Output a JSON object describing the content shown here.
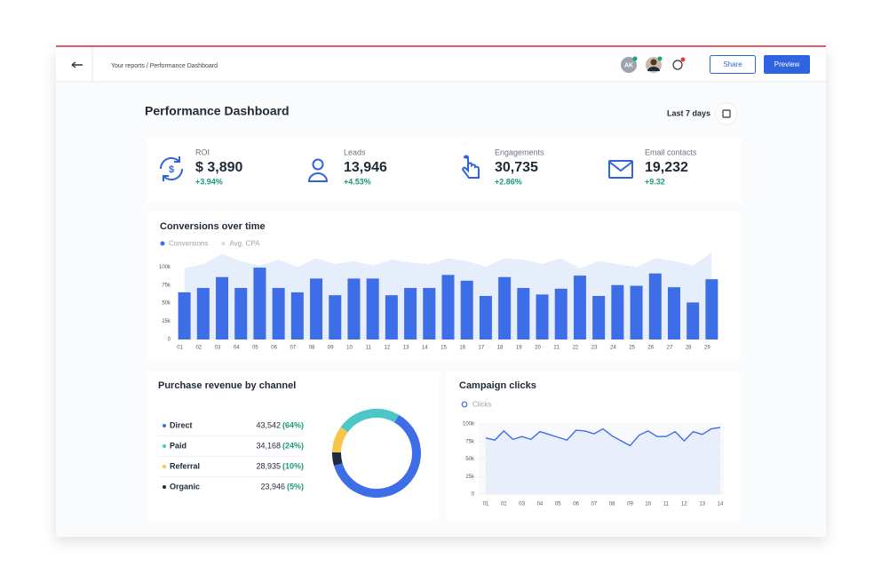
{
  "header": {
    "breadcrumb": "Your reports / Performance Dashboard",
    "avatar": "AK",
    "share": "Share",
    "preview": "Preview"
  },
  "title": "Performance Dashboard",
  "date_range": "Last 7 days",
  "kpis": [
    {
      "label": "ROI",
      "value": "$ 3,890",
      "change": "+3.94%"
    },
    {
      "label": "Leads",
      "value": "13,946",
      "change": "+4.53%"
    },
    {
      "label": "Engagements",
      "value": "30,735",
      "change": "+2.86%"
    },
    {
      "label": "Email contacts",
      "value": "19,232",
      "change": "+9.32"
    }
  ],
  "conversions": {
    "type": "bar",
    "title": "Conversions over time",
    "categories": [
      "01",
      "02",
      "03",
      "04",
      "05",
      "06",
      "07",
      "08",
      "09",
      "10",
      "11",
      "12",
      "13",
      "14",
      "15",
      "16",
      "17",
      "18",
      "19",
      "20",
      "21",
      "22",
      "23",
      "24",
      "25",
      "26",
      "27",
      "28",
      "29"
    ],
    "series": [
      {
        "name": "Conversions",
        "color": "#3d6ee8",
        "values": [
          65000,
          71000,
          86000,
          71000,
          99000,
          71000,
          65000,
          84000,
          61000,
          84000,
          84000,
          61000,
          71000,
          71000,
          89000,
          81000,
          60000,
          86000,
          71000,
          62000,
          70000,
          88000,
          60000,
          75000,
          74000,
          91000,
          72000,
          51000,
          83000
        ]
      },
      {
        "name": "Avg. CPA",
        "color": "#e6edfb",
        "type": "area",
        "values": [
          98000,
          104000,
          118000,
          108000,
          102000,
          110000,
          100000,
          112000,
          104000,
          108000,
          102000,
          110000,
          106000,
          104000,
          112000,
          108000,
          100000,
          112000,
          110000,
          104000,
          112000,
          98000,
          108000,
          104000,
          100000,
          112000,
          108000,
          102000,
          120000
        ]
      }
    ],
    "ylim": [
      0,
      120000
    ],
    "yticks": [
      0,
      {
        "value": 25000,
        "label": "25k"
      },
      {
        "value": 50000,
        "label": "50k"
      },
      {
        "value": 75000,
        "label": "75k"
      },
      {
        "value": 100000,
        "label": "100k"
      }
    ]
  },
  "revenue": {
    "type": "donut",
    "title": "Purchase revenue by channel",
    "channels": [
      {
        "name": "Direct",
        "value": "43,542",
        "share": 64,
        "share_label": "(64%)",
        "color": "#3d6ee8"
      },
      {
        "name": "Paid",
        "value": "34,168",
        "share": 24,
        "share_label": "(24%)",
        "color": "#4cc6c6"
      },
      {
        "name": "Referral",
        "value": "28,935",
        "share": 10,
        "share_label": "(10%)",
        "color": "#f7c54a"
      },
      {
        "name": "Organic",
        "value": "23,946",
        "share": 5,
        "share_label": "(5%)",
        "color": "#1e2a3e"
      }
    ]
  },
  "clicks": {
    "type": "line",
    "title": "Campaign clicks",
    "series": [
      {
        "name": "Clicks",
        "color": "#3d6ee8",
        "values": [
          80000,
          77000,
          90000,
          78000,
          82000,
          78000,
          89000,
          85000,
          81000,
          77000,
          91000,
          90000,
          86000,
          93000,
          83000,
          76000,
          69000,
          84000,
          90000,
          82000,
          82000,
          89000,
          76000,
          89000,
          85000,
          93000,
          95000
        ]
      }
    ],
    "x": [
      1,
      1.5,
      2,
      2.5,
      3,
      3.5,
      4,
      4.5,
      5,
      5.5,
      6,
      6.5,
      7,
      7.5,
      8,
      8.5,
      9,
      9.5,
      10,
      10.5,
      11,
      11.5,
      12,
      12.5,
      13,
      13.5,
      14
    ],
    "xlim": [
      1,
      14
    ],
    "xticks": [
      {
        "value": 1,
        "label": "01"
      },
      {
        "value": 2,
        "label": "02"
      },
      {
        "value": 3,
        "label": "03"
      },
      {
        "value": 4,
        "label": "04"
      },
      {
        "value": 5,
        "label": "05"
      },
      {
        "value": 6,
        "label": "06"
      },
      {
        "value": 7,
        "label": "07"
      },
      {
        "value": 8,
        "label": "08"
      },
      {
        "value": 9,
        "label": "09"
      },
      {
        "value": 10,
        "label": "10"
      },
      {
        "value": 11,
        "label": "11"
      },
      {
        "value": 12,
        "label": "12"
      },
      {
        "value": 13,
        "label": "13"
      },
      {
        "value": 14,
        "label": "14"
      }
    ],
    "ylim": [
      0,
      100000
    ],
    "yticks": [
      0,
      {
        "value": 25000,
        "label": "25k"
      },
      {
        "value": 50000,
        "label": "50k"
      },
      {
        "value": 75000,
        "label": "75k"
      },
      {
        "value": 100000,
        "label": "100k"
      }
    ]
  }
}
